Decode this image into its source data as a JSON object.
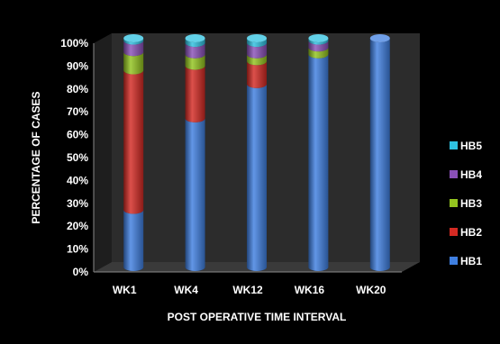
{
  "chart_data": {
    "type": "bar",
    "stacked": true,
    "style": "3d-cylinder",
    "categories": [
      "WK1",
      "WK4",
      "WK12",
      "WK16",
      "WK20"
    ],
    "series": [
      {
        "name": "HB1",
        "color": "#3f7fe0",
        "values": [
          25,
          65,
          80,
          93,
          100
        ]
      },
      {
        "name": "HB2",
        "color": "#d42a23",
        "values": [
          61,
          23,
          10,
          0,
          0
        ]
      },
      {
        "name": "HB3",
        "color": "#93c41f",
        "values": [
          8,
          5,
          3,
          3,
          0
        ]
      },
      {
        "name": "HB4",
        "color": "#8a50b8",
        "values": [
          5,
          5,
          5,
          3,
          0
        ]
      },
      {
        "name": "HB5",
        "color": "#2ec1e0",
        "values": [
          1,
          2,
          2,
          1,
          0
        ]
      }
    ],
    "xlabel": "POST OPERATIVE TIME INTERVAL",
    "ylabel": "PERCENTAGE OF CASES",
    "ylim": [
      0,
      100
    ],
    "yticks": [
      "0%",
      "10%",
      "20%",
      "30%",
      "40%",
      "50%",
      "60%",
      "70%",
      "80%",
      "90%",
      "100%"
    ],
    "legend": {
      "position": "right",
      "order": [
        "HB5",
        "HB4",
        "HB3",
        "HB2",
        "HB1"
      ]
    },
    "grid": false
  }
}
